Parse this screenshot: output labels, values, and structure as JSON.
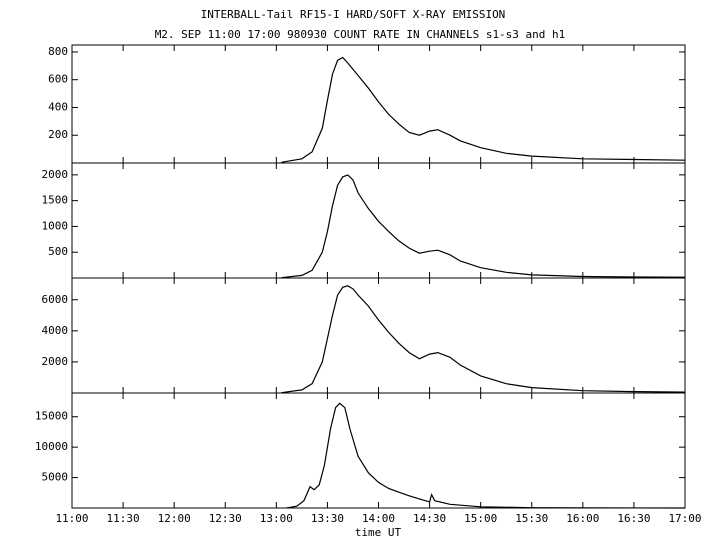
{
  "chart_data": [
    {
      "type": "line",
      "title": "INTERBALL-Tail RF15-I HARD/SOFT X-RAY EMISSION",
      "subtitle": "M2. SEP 11:00 17:00 980930  COUNT RATE IN CHANNELS s1-s3 and h1",
      "xlim": [
        11,
        17
      ],
      "ylim": [
        0,
        850
      ],
      "yticks": [
        200,
        400,
        600,
        800
      ],
      "series": [
        {
          "color": "#000000",
          "x": [
            13.05,
            13.25,
            13.35,
            13.45,
            13.5,
            13.55,
            13.6,
            13.65,
            13.7,
            13.8,
            13.9,
            14.0,
            14.1,
            14.2,
            14.3,
            14.4,
            14.5,
            14.58,
            14.7,
            14.8,
            15.0,
            15.25,
            15.5,
            16.0,
            16.5,
            17.0
          ],
          "values": [
            5,
            30,
            80,
            250,
            450,
            640,
            740,
            760,
            720,
            630,
            540,
            440,
            350,
            280,
            220,
            200,
            230,
            240,
            200,
            160,
            110,
            70,
            50,
            30,
            25,
            20
          ]
        }
      ]
    },
    {
      "type": "line",
      "xlim": [
        11,
        17
      ],
      "ylim": [
        0,
        2230
      ],
      "yticks": [
        500,
        1000,
        1500,
        2000
      ],
      "series": [
        {
          "color": "#000000",
          "x": [
            13.05,
            13.25,
            13.35,
            13.45,
            13.5,
            13.55,
            13.6,
            13.65,
            13.7,
            13.75,
            13.8,
            13.9,
            14.0,
            14.1,
            14.2,
            14.3,
            14.4,
            14.5,
            14.58,
            14.7,
            14.8,
            15.0,
            15.25,
            15.5,
            16.0,
            16.5,
            17.0
          ],
          "values": [
            5,
            50,
            150,
            500,
            900,
            1400,
            1800,
            1960,
            2000,
            1900,
            1650,
            1350,
            1100,
            900,
            720,
            580,
            480,
            520,
            540,
            450,
            330,
            200,
            110,
            60,
            30,
            20,
            15
          ]
        }
      ]
    },
    {
      "type": "line",
      "xlim": [
        11,
        17
      ],
      "ylim": [
        0,
        7400
      ],
      "yticks": [
        2000,
        4000,
        6000
      ],
      "series": [
        {
          "color": "#000000",
          "x": [
            13.05,
            13.25,
            13.35,
            13.45,
            13.5,
            13.55,
            13.6,
            13.65,
            13.7,
            13.75,
            13.8,
            13.9,
            14.0,
            14.1,
            14.2,
            14.3,
            14.4,
            14.5,
            14.58,
            14.7,
            14.8,
            15.0,
            15.25,
            15.5,
            16.0,
            16.5,
            17.0
          ],
          "values": [
            20,
            200,
            600,
            2000,
            3500,
            5000,
            6300,
            6800,
            6900,
            6700,
            6300,
            5600,
            4700,
            3900,
            3200,
            2600,
            2200,
            2500,
            2600,
            2300,
            1800,
            1100,
            600,
            350,
            150,
            90,
            60
          ]
        }
      ]
    },
    {
      "type": "line",
      "xlabel": "time UT",
      "xlim": [
        11,
        17
      ],
      "ylim": [
        0,
        18900
      ],
      "yticks": [
        5000,
        10000,
        15000
      ],
      "xticks": [
        {
          "value": 11,
          "label": "11:00"
        },
        {
          "value": 11.5,
          "label": "11:30"
        },
        {
          "value": 12,
          "label": "12:00"
        },
        {
          "value": 12.5,
          "label": "12:30"
        },
        {
          "value": 13,
          "label": "13:00"
        },
        {
          "value": 13.5,
          "label": "13:30"
        },
        {
          "value": 14,
          "label": "14:00"
        },
        {
          "value": 14.5,
          "label": "14:30"
        },
        {
          "value": 15,
          "label": "15:00"
        },
        {
          "value": 15.5,
          "label": "15:30"
        },
        {
          "value": 16,
          "label": "16:00"
        },
        {
          "value": 16.5,
          "label": "16:30"
        },
        {
          "value": 17,
          "label": "17:00"
        }
      ],
      "series": [
        {
          "color": "#000000",
          "x": [
            13.1,
            13.2,
            13.27,
            13.33,
            13.37,
            13.42,
            13.47,
            13.53,
            13.58,
            13.62,
            13.67,
            13.72,
            13.8,
            13.9,
            14.0,
            14.1,
            14.2,
            14.3,
            14.4,
            14.5,
            14.52,
            14.55,
            14.7,
            15.0,
            15.5,
            16.0,
            17.0
          ],
          "values": [
            0,
            300,
            1200,
            3500,
            3000,
            3800,
            7000,
            13000,
            16500,
            17200,
            16500,
            13000,
            8500,
            5800,
            4200,
            3200,
            2600,
            2000,
            1500,
            1000,
            2200,
            1200,
            600,
            200,
            50,
            10,
            0
          ]
        }
      ]
    }
  ]
}
